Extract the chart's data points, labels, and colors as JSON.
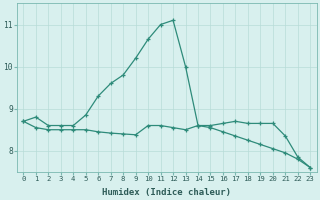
{
  "xlabel": "Humidex (Indice chaleur)",
  "x": [
    0,
    1,
    2,
    3,
    4,
    5,
    6,
    7,
    8,
    9,
    10,
    11,
    12,
    13,
    14,
    15,
    16,
    17,
    18,
    19,
    20,
    21,
    22,
    23
  ],
  "line1": [
    8.7,
    8.8,
    8.6,
    8.6,
    8.6,
    8.85,
    9.3,
    9.6,
    9.8,
    10.2,
    10.65,
    11.0,
    11.1,
    10.0,
    8.6,
    8.6,
    8.65,
    8.7,
    8.65,
    8.65,
    8.65,
    8.35,
    7.85,
    7.6
  ],
  "line2": [
    8.7,
    8.55,
    8.5,
    8.5,
    8.5,
    8.5,
    8.45,
    8.42,
    8.4,
    8.38,
    8.6,
    8.6,
    8.55,
    8.5,
    8.6,
    8.55,
    8.45,
    8.35,
    8.25,
    8.15,
    8.05,
    7.95,
    7.8,
    7.6
  ],
  "line_color": "#2e8b7a",
  "bg_color": "#d8f0ee",
  "grid_color": "#b8dcd8",
  "ylim_min": 7.5,
  "ylim_max": 11.5,
  "yticks": [
    8,
    9,
    10,
    11
  ],
  "xlabel_fontsize": 6.5,
  "tick_fontsize": 5.2
}
